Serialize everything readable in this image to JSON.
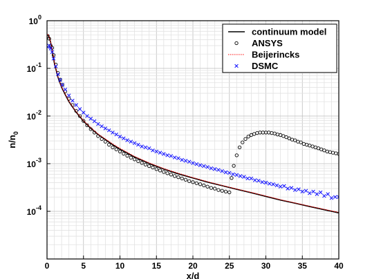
{
  "chart_data": {
    "type": "line",
    "xlabel": "x/d",
    "ylabel_main": "n/n",
    "ylabel_sub": "0",
    "xlim": [
      0,
      40
    ],
    "ylim": [
      1e-05,
      1
    ],
    "yscale": "log",
    "grid": true,
    "legend_position": "top-right",
    "x_ticks": [
      0,
      5,
      10,
      15,
      20,
      25,
      30,
      35,
      40
    ],
    "y_ticks": [
      {
        "value": 1,
        "base": "10",
        "exp": "0"
      },
      {
        "value": 0.1,
        "base": "10",
        "exp": "-1"
      },
      {
        "value": 0.01,
        "base": "10",
        "exp": "-2"
      },
      {
        "value": 0.001,
        "base": "10",
        "exp": "-3"
      },
      {
        "value": 0.0001,
        "base": "10",
        "exp": "-4"
      }
    ],
    "series": [
      {
        "name": "continuum model",
        "style": "line",
        "color": "#000000",
        "x": [
          0.1,
          0.3,
          0.5,
          0.75,
          1,
          1.5,
          2,
          2.5,
          3,
          4,
          5,
          6,
          7,
          8,
          9,
          10,
          12,
          14,
          16,
          18,
          20,
          22,
          24,
          26,
          28,
          30,
          32,
          34,
          36,
          38,
          40
        ],
        "y": [
          0.5,
          0.45,
          0.35,
          0.22,
          0.13,
          0.065,
          0.04,
          0.028,
          0.02,
          0.012,
          0.0078,
          0.0055,
          0.0041,
          0.0032,
          0.0025,
          0.002,
          0.00138,
          0.00101,
          0.00077,
          0.00061,
          0.0005,
          0.00041,
          0.000345,
          0.00029,
          0.000245,
          0.000205,
          0.000172,
          0.000148,
          0.000126,
          0.000108,
          9.3e-05
        ]
      },
      {
        "name": "ANSYS",
        "style": "circle",
        "color": "#000000",
        "x": [
          0.1,
          0.3,
          0.5,
          0.7,
          0.9,
          1.2,
          1.5,
          1.8,
          2.1,
          2.5,
          3,
          3.5,
          4,
          4.5,
          5,
          5.5,
          6,
          6.5,
          7,
          7.5,
          8,
          8.5,
          9,
          9.5,
          10,
          10.5,
          11,
          11.5,
          12,
          12.5,
          13,
          13.5,
          14,
          14.5,
          15,
          15.5,
          16,
          16.5,
          17,
          17.5,
          18,
          18.5,
          19,
          19.5,
          20,
          20.5,
          21,
          21.5,
          22,
          22.5,
          23,
          23.5,
          24,
          24.5,
          25,
          25.3,
          25.6,
          26,
          26.4,
          26.8,
          27.2,
          27.6,
          28,
          28.4,
          28.8,
          29.2,
          29.6,
          30,
          30.4,
          30.8,
          31.2,
          31.6,
          32,
          32.4,
          32.8,
          33.2,
          33.6,
          34,
          34.4,
          34.8,
          35.2,
          35.6,
          36,
          36.4,
          36.8,
          37.2,
          37.6,
          38,
          38.4,
          38.8,
          39.2,
          39.6,
          40
        ],
        "y": [
          0.48,
          0.42,
          0.3,
          0.27,
          0.19,
          0.12,
          0.08,
          0.058,
          0.045,
          0.033,
          0.023,
          0.017,
          0.0128,
          0.01,
          0.0079,
          0.0064,
          0.0053,
          0.0045,
          0.0038,
          0.0033,
          0.0029,
          0.0025,
          0.0022,
          0.002,
          0.0018,
          0.00162,
          0.00147,
          0.00134,
          0.00123,
          0.00113,
          0.00104,
          0.00096,
          0.00089,
          0.00083,
          0.00077,
          0.00072,
          0.00067,
          0.00063,
          0.00059,
          0.00055,
          0.00052,
          0.00049,
          0.00046,
          0.00043,
          0.00041,
          0.00039,
          0.00037,
          0.00035,
          0.00033,
          0.00031,
          0.0003,
          0.00028,
          0.00027,
          0.00026,
          0.00025,
          0.0005,
          0.0009,
          0.0015,
          0.0022,
          0.0028,
          0.0033,
          0.0037,
          0.004,
          0.0042,
          0.0044,
          0.0045,
          0.0045,
          0.0045,
          0.0045,
          0.0044,
          0.0043,
          0.0041,
          0.004,
          0.0038,
          0.0036,
          0.0034,
          0.0032,
          0.0031,
          0.0029,
          0.0028,
          0.0026,
          0.0025,
          0.0024,
          0.0023,
          0.0022,
          0.0021,
          0.002,
          0.0019,
          0.0018,
          0.00175,
          0.0017,
          0.00165,
          0.0016
        ]
      },
      {
        "name": "Beijerincks",
        "style": "dotted",
        "color": "#ff0000",
        "x": [
          0.1,
          0.3,
          0.5,
          0.75,
          1,
          1.5,
          2,
          2.5,
          3,
          4,
          5,
          6,
          7,
          8,
          9,
          10,
          12,
          14,
          16,
          18,
          20,
          22,
          24,
          26,
          28,
          30,
          32,
          34,
          36,
          38,
          40
        ],
        "y": [
          0.52,
          0.46,
          0.36,
          0.23,
          0.135,
          0.067,
          0.041,
          0.029,
          0.0205,
          0.0123,
          0.008,
          0.0057,
          0.0042,
          0.0033,
          0.0026,
          0.0021,
          0.00142,
          0.00104,
          0.00079,
          0.00063,
          0.00051,
          0.00042,
          0.00035,
          0.000295,
          0.00025,
          0.00021,
          0.000176,
          0.00015,
          0.000128,
          0.00011,
          9.5e-05
        ]
      },
      {
        "name": "DSMC",
        "style": "x",
        "color": "#1a1aff",
        "x": [
          0.1,
          0.3,
          0.5,
          0.7,
          0.9,
          1.2,
          1.5,
          1.8,
          2.1,
          2.5,
          3,
          3.5,
          4,
          4.5,
          5,
          5.5,
          6,
          6.5,
          7,
          7.5,
          8,
          8.5,
          9,
          9.5,
          10,
          10.5,
          11,
          11.5,
          12,
          12.5,
          13,
          13.5,
          14,
          14.5,
          15,
          15.5,
          16,
          16.5,
          17,
          17.5,
          18,
          18.5,
          19,
          19.5,
          20,
          20.5,
          21,
          21.5,
          22,
          22.5,
          23,
          23.5,
          24,
          24.5,
          25,
          25.5,
          26,
          26.5,
          27,
          27.5,
          28,
          28.5,
          29,
          29.5,
          30,
          30.5,
          31,
          31.5,
          32,
          32.5,
          33,
          33.5,
          34,
          34.5,
          35,
          35.5,
          36,
          36.5,
          37,
          37.5,
          38,
          38.5,
          39,
          39.5,
          40
        ],
        "y": [
          0.28,
          0.3,
          0.26,
          0.22,
          0.16,
          0.11,
          0.075,
          0.057,
          0.045,
          0.036,
          0.027,
          0.021,
          0.017,
          0.014,
          0.0118,
          0.01,
          0.0088,
          0.0078,
          0.0068,
          0.0061,
          0.0055,
          0.005,
          0.0045,
          0.0041,
          0.0037,
          0.0034,
          0.0031,
          0.0029,
          0.0027,
          0.0025,
          0.0023,
          0.0022,
          0.0021,
          0.0019,
          0.0018,
          0.0017,
          0.0016,
          0.0015,
          0.00145,
          0.00135,
          0.0013,
          0.0012,
          0.00115,
          0.0011,
          0.00103,
          0.00098,
          0.00093,
          0.00089,
          0.00085,
          0.0008,
          0.00077,
          0.00074,
          0.0007,
          0.00066,
          0.00064,
          0.0006,
          0.00058,
          0.00055,
          0.00053,
          0.00049,
          0.00049,
          0.00045,
          0.00044,
          0.00041,
          0.0004,
          0.00038,
          0.00037,
          0.00035,
          0.00033,
          0.00034,
          0.0003,
          0.00031,
          0.00028,
          0.00029,
          0.00026,
          0.00027,
          0.00024,
          0.00026,
          0.00023,
          0.00025,
          0.00021,
          0.00023,
          0.00019,
          0.0002,
          0.0002
        ]
      }
    ]
  }
}
